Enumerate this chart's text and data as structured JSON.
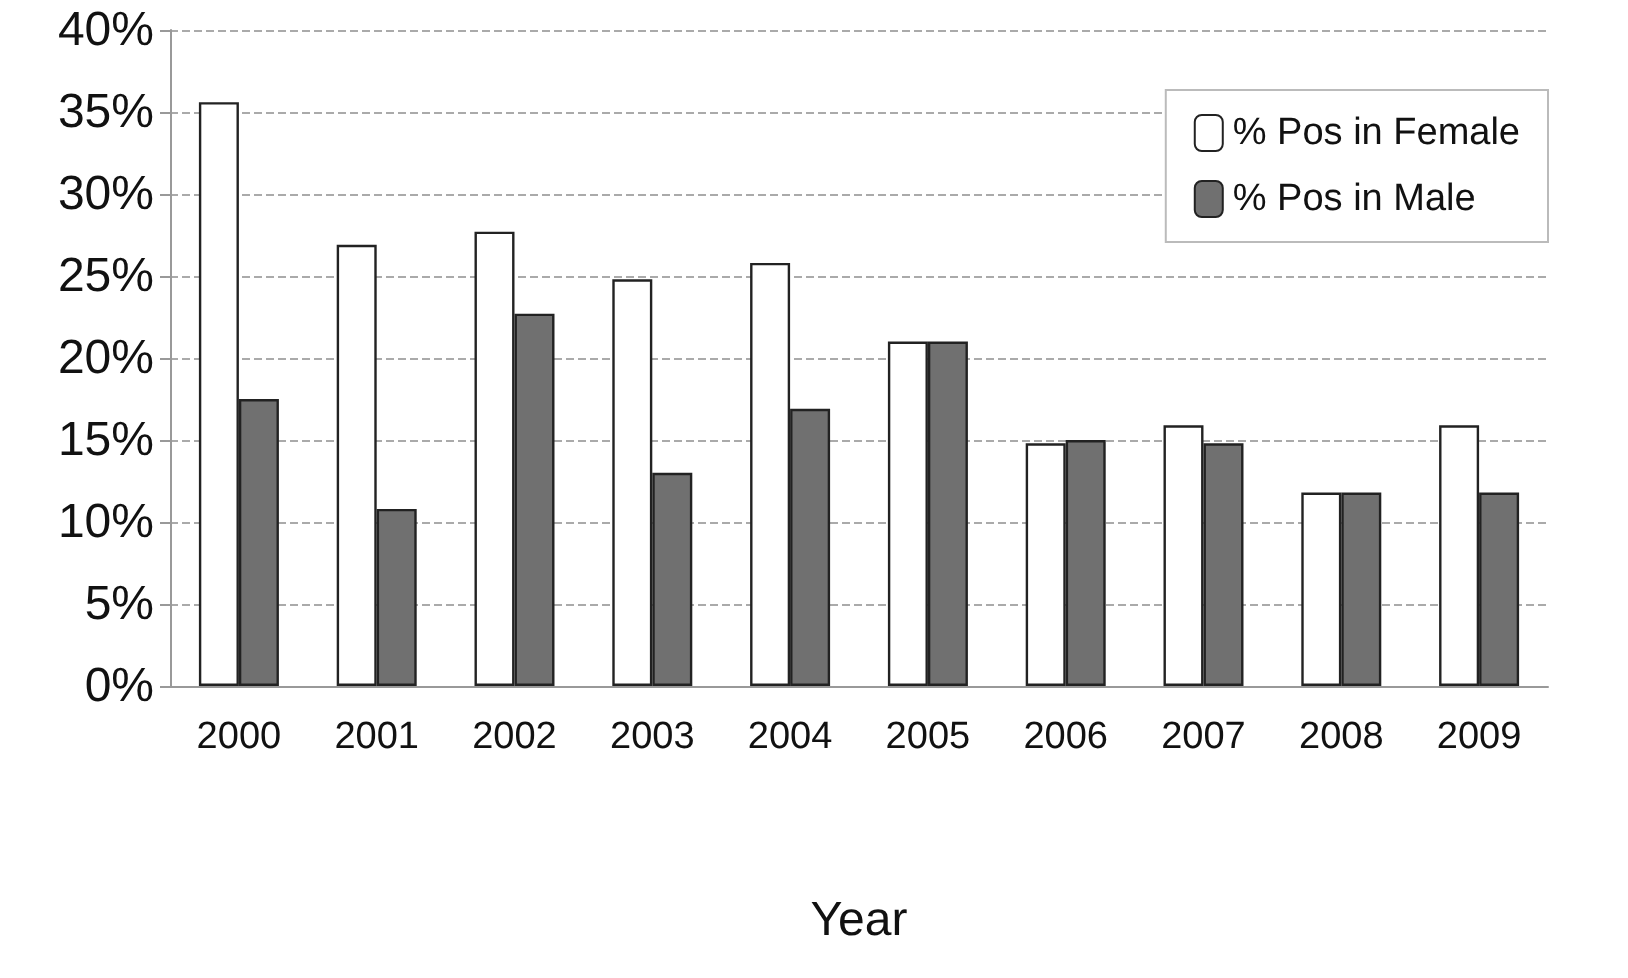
{
  "chart_data": {
    "type": "bar",
    "xlabel": "Year",
    "categories": [
      "2000",
      "2001",
      "2002",
      "2003",
      "2004",
      "2005",
      "2006",
      "2007",
      "2008",
      "2009"
    ],
    "series": [
      {
        "name": "% Pos in Female",
        "color": "#ffffff",
        "values": [
          35.6,
          26.9,
          27.7,
          24.8,
          25.8,
          21.0,
          14.8,
          15.9,
          11.8,
          15.9
        ]
      },
      {
        "name": "% Pos in Male",
        "color": "#707070",
        "values": [
          17.5,
          10.8,
          22.7,
          13.0,
          16.9,
          21.0,
          15.0,
          14.8,
          11.8,
          11.8
        ]
      }
    ],
    "ylim": [
      0,
      40
    ],
    "yticks": [
      {
        "value": 0,
        "label": "0%"
      },
      {
        "value": 5,
        "label": "5%"
      },
      {
        "value": 10,
        "label": "10%"
      },
      {
        "value": 15,
        "label": "15%"
      },
      {
        "value": 20,
        "label": "20%"
      },
      {
        "value": 25,
        "label": "25%"
      },
      {
        "value": 30,
        "label": "30%"
      },
      {
        "value": 35,
        "label": "35%"
      },
      {
        "value": 40,
        "label": "40%"
      }
    ],
    "grid": "y",
    "legend": "top right"
  }
}
